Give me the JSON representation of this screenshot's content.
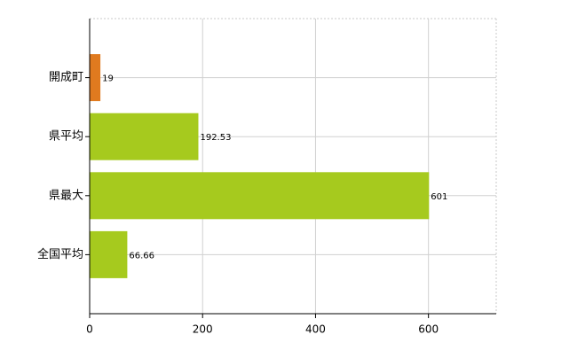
{
  "chart_data": {
    "type": "bar",
    "orientation": "horizontal",
    "categories": [
      "開成町",
      "県平均",
      "県最大",
      "全国平均"
    ],
    "values": [
      19,
      192.53,
      601,
      66.66
    ],
    "colors": [
      "#e07a1f",
      "#a6ca1e",
      "#a6ca1e",
      "#a6ca1e"
    ],
    "xlim": [
      0,
      720
    ],
    "xticks": [
      0,
      200,
      400,
      600
    ],
    "grid": true
  }
}
